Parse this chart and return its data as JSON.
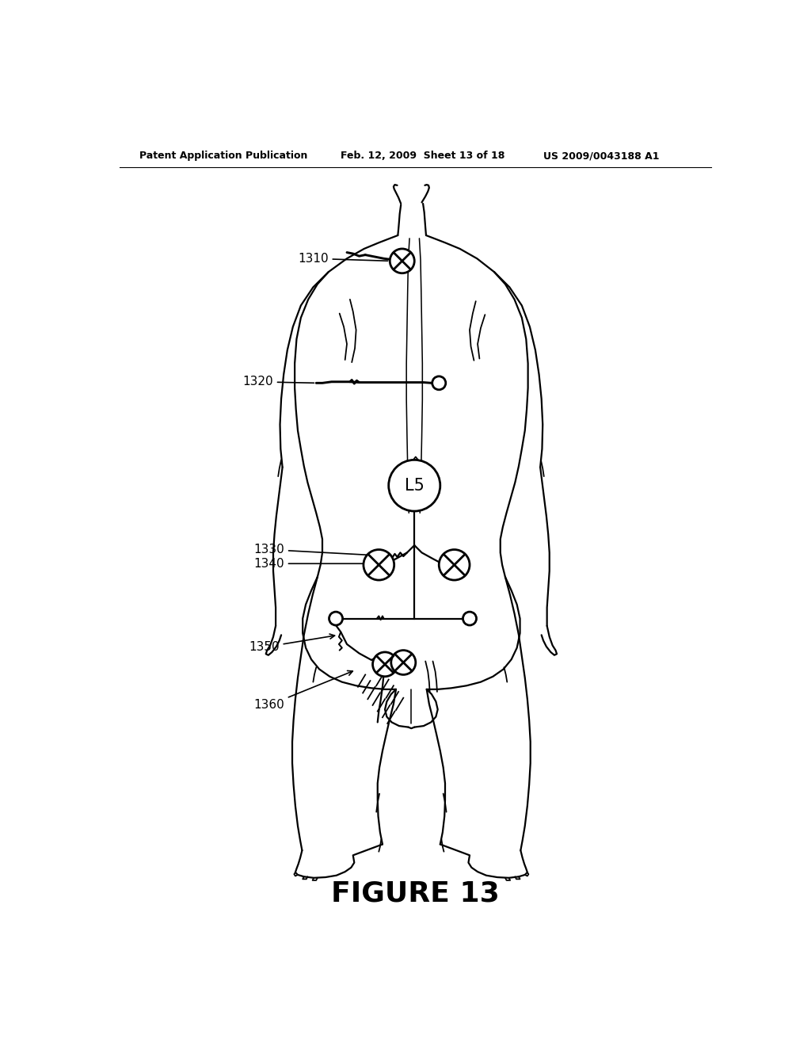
{
  "title": "FIGURE 13",
  "header_left": "Patent Application Publication",
  "header_mid": "Feb. 12, 2009  Sheet 13 of 18",
  "header_right": "US 2009/0043188 A1",
  "bg_color": "#ffffff",
  "line_color": "#000000",
  "label_1310": "1310",
  "label_1320": "1320",
  "label_1330": "1330",
  "label_1340": "1340",
  "label_1350": "1350",
  "label_1360": "1360",
  "label_L5": "L5",
  "body_lw": 1.6,
  "electrode_lw": 2.0
}
